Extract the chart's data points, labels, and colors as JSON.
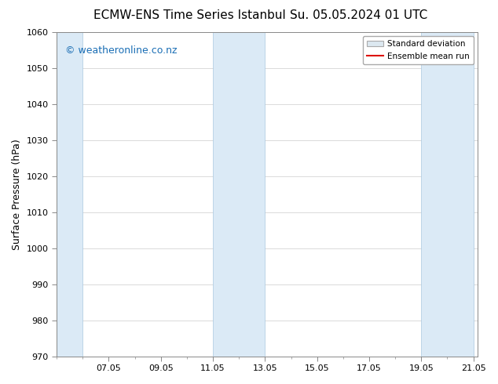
{
  "title_left": "ECMW-ENS Time Series Istanbul",
  "title_right": "Su. 05.05.2024 01 UTC",
  "ylabel": "Surface Pressure (hPa)",
  "ylim": [
    970,
    1060
  ],
  "yticks": [
    970,
    980,
    990,
    1000,
    1010,
    1020,
    1030,
    1040,
    1050,
    1060
  ],
  "xtick_labels": [
    "07.05",
    "09.05",
    "11.05",
    "13.05",
    "15.05",
    "17.05",
    "19.05",
    "21.05"
  ],
  "xtick_positions": [
    2,
    4,
    6,
    8,
    10,
    12,
    14,
    16
  ],
  "shaded_bands": [
    {
      "x_start": 0.0,
      "x_end": 1.0
    },
    {
      "x_start": 6.0,
      "x_end": 8.0
    },
    {
      "x_start": 14.0,
      "x_end": 16.0
    }
  ],
  "xlim": [
    0,
    16.17
  ],
  "band_color": "#dbeaf6",
  "band_edge_color": "#aac8e0",
  "watermark_text": "© weatheronline.co.nz",
  "watermark_color": "#1a6eb5",
  "watermark_fontsize": 9,
  "legend_std_label": "Standard deviation",
  "legend_mean_label": "Ensemble mean run",
  "legend_std_facecolor": "#dce8f0",
  "legend_std_edgecolor": "#aaaaaa",
  "legend_mean_color": "#dd1100",
  "bg_color": "#ffffff",
  "plot_bg_color": "#ffffff",
  "title_fontsize": 11,
  "axis_label_fontsize": 9,
  "tick_fontsize": 8,
  "grid_color": "#cccccc",
  "spine_color": "#888888"
}
